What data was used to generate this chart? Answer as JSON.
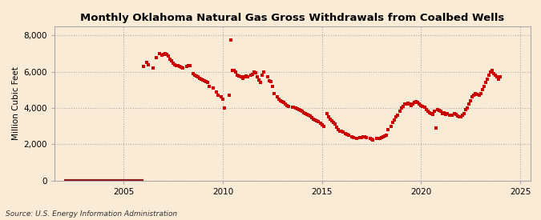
{
  "title": "Monthly Oklahoma Natural Gas Gross Withdrawals from Coalbed Wells",
  "ylabel": "Million Cubic Feet",
  "source": "Source: U.S. Energy Information Administration",
  "background_color": "#faebd7",
  "plot_bg_color": "#faebd7",
  "line_color": "#8b1a1a",
  "scatter_color": "#cc0000",
  "xlim_left": 2001.5,
  "xlim_right": 2025.5,
  "ylim_bottom": 0,
  "ylim_top": 8500,
  "yticks": [
    0,
    2000,
    4000,
    6000,
    8000
  ],
  "xticks": [
    2005,
    2010,
    2015,
    2020,
    2025
  ],
  "zero_line_start": 2002.0,
  "zero_line_end": 2006.0,
  "data": [
    [
      2006.0,
      6300
    ],
    [
      2006.17,
      6500
    ],
    [
      2006.25,
      6400
    ],
    [
      2006.5,
      6200
    ],
    [
      2006.67,
      6800
    ],
    [
      2006.83,
      7000
    ],
    [
      2006.92,
      6900
    ],
    [
      2007.0,
      6950
    ],
    [
      2007.08,
      7000
    ],
    [
      2007.17,
      6950
    ],
    [
      2007.25,
      6850
    ],
    [
      2007.33,
      6700
    ],
    [
      2007.42,
      6600
    ],
    [
      2007.5,
      6450
    ],
    [
      2007.58,
      6380
    ],
    [
      2007.67,
      6350
    ],
    [
      2007.75,
      6330
    ],
    [
      2007.83,
      6300
    ],
    [
      2007.92,
      6250
    ],
    [
      2008.0,
      6200
    ],
    [
      2008.17,
      6300
    ],
    [
      2008.25,
      6350
    ],
    [
      2008.33,
      6350
    ],
    [
      2008.5,
      5900
    ],
    [
      2008.58,
      5800
    ],
    [
      2008.67,
      5750
    ],
    [
      2008.75,
      5700
    ],
    [
      2008.83,
      5650
    ],
    [
      2008.92,
      5600
    ],
    [
      2009.0,
      5550
    ],
    [
      2009.08,
      5500
    ],
    [
      2009.17,
      5450
    ],
    [
      2009.25,
      5400
    ],
    [
      2009.33,
      5200
    ],
    [
      2009.5,
      5100
    ],
    [
      2009.67,
      4900
    ],
    [
      2009.75,
      4700
    ],
    [
      2009.92,
      4600
    ],
    [
      2010.0,
      4500
    ],
    [
      2010.08,
      4000
    ],
    [
      2010.33,
      4700
    ],
    [
      2010.42,
      7750
    ],
    [
      2010.5,
      6050
    ],
    [
      2010.58,
      6050
    ],
    [
      2010.67,
      6000
    ],
    [
      2010.75,
      5800
    ],
    [
      2010.83,
      5750
    ],
    [
      2010.92,
      5700
    ],
    [
      2011.0,
      5650
    ],
    [
      2011.08,
      5700
    ],
    [
      2011.17,
      5750
    ],
    [
      2011.25,
      5700
    ],
    [
      2011.42,
      5800
    ],
    [
      2011.5,
      5850
    ],
    [
      2011.58,
      6000
    ],
    [
      2011.67,
      5950
    ],
    [
      2011.75,
      5700
    ],
    [
      2011.83,
      5550
    ],
    [
      2011.92,
      5400
    ],
    [
      2012.0,
      5800
    ],
    [
      2012.08,
      6000
    ],
    [
      2012.25,
      5700
    ],
    [
      2012.33,
      5500
    ],
    [
      2012.42,
      5450
    ],
    [
      2012.5,
      5200
    ],
    [
      2012.58,
      4800
    ],
    [
      2012.75,
      4600
    ],
    [
      2012.83,
      4500
    ],
    [
      2012.92,
      4400
    ],
    [
      2013.0,
      4350
    ],
    [
      2013.08,
      4300
    ],
    [
      2013.17,
      4200
    ],
    [
      2013.25,
      4150
    ],
    [
      2013.33,
      4100
    ],
    [
      2013.5,
      4050
    ],
    [
      2013.58,
      4050
    ],
    [
      2013.67,
      4000
    ],
    [
      2013.75,
      3950
    ],
    [
      2013.83,
      3900
    ],
    [
      2013.92,
      3850
    ],
    [
      2014.0,
      3800
    ],
    [
      2014.08,
      3750
    ],
    [
      2014.17,
      3700
    ],
    [
      2014.25,
      3650
    ],
    [
      2014.33,
      3600
    ],
    [
      2014.42,
      3550
    ],
    [
      2014.5,
      3450
    ],
    [
      2014.58,
      3400
    ],
    [
      2014.67,
      3350
    ],
    [
      2014.75,
      3300
    ],
    [
      2014.83,
      3250
    ],
    [
      2014.92,
      3150
    ],
    [
      2015.0,
      3050
    ],
    [
      2015.08,
      3000
    ],
    [
      2015.25,
      3700
    ],
    [
      2015.33,
      3500
    ],
    [
      2015.42,
      3400
    ],
    [
      2015.5,
      3300
    ],
    [
      2015.58,
      3200
    ],
    [
      2015.67,
      3100
    ],
    [
      2015.75,
      2950
    ],
    [
      2015.83,
      2800
    ],
    [
      2015.92,
      2700
    ],
    [
      2016.0,
      2700
    ],
    [
      2016.08,
      2650
    ],
    [
      2016.17,
      2600
    ],
    [
      2016.25,
      2550
    ],
    [
      2016.33,
      2500
    ],
    [
      2016.5,
      2400
    ],
    [
      2016.58,
      2350
    ],
    [
      2016.75,
      2300
    ],
    [
      2016.92,
      2350
    ],
    [
      2017.0,
      2350
    ],
    [
      2017.08,
      2400
    ],
    [
      2017.17,
      2400
    ],
    [
      2017.25,
      2350
    ],
    [
      2017.42,
      2300
    ],
    [
      2017.5,
      2280
    ],
    [
      2017.58,
      2250
    ],
    [
      2017.75,
      2300
    ],
    [
      2017.92,
      2320
    ],
    [
      2018.0,
      2350
    ],
    [
      2018.08,
      2400
    ],
    [
      2018.17,
      2450
    ],
    [
      2018.25,
      2500
    ],
    [
      2018.33,
      2800
    ],
    [
      2018.5,
      3000
    ],
    [
      2018.58,
      3200
    ],
    [
      2018.67,
      3350
    ],
    [
      2018.75,
      3500
    ],
    [
      2018.83,
      3600
    ],
    [
      2018.92,
      3800
    ],
    [
      2019.0,
      4000
    ],
    [
      2019.08,
      4100
    ],
    [
      2019.17,
      4200
    ],
    [
      2019.25,
      4200
    ],
    [
      2019.33,
      4250
    ],
    [
      2019.42,
      4200
    ],
    [
      2019.5,
      4150
    ],
    [
      2019.58,
      4200
    ],
    [
      2019.67,
      4300
    ],
    [
      2019.75,
      4350
    ],
    [
      2019.83,
      4300
    ],
    [
      2019.92,
      4200
    ],
    [
      2020.0,
      4150
    ],
    [
      2020.08,
      4100
    ],
    [
      2020.17,
      4050
    ],
    [
      2020.25,
      3900
    ],
    [
      2020.33,
      3800
    ],
    [
      2020.42,
      3750
    ],
    [
      2020.5,
      3700
    ],
    [
      2020.58,
      3650
    ],
    [
      2020.67,
      3800
    ],
    [
      2020.75,
      2900
    ],
    [
      2020.83,
      3900
    ],
    [
      2020.92,
      3850
    ],
    [
      2021.0,
      3800
    ],
    [
      2021.08,
      3700
    ],
    [
      2021.17,
      3750
    ],
    [
      2021.25,
      3650
    ],
    [
      2021.33,
      3700
    ],
    [
      2021.42,
      3600
    ],
    [
      2021.5,
      3600
    ],
    [
      2021.58,
      3600
    ],
    [
      2021.67,
      3700
    ],
    [
      2021.75,
      3650
    ],
    [
      2021.83,
      3550
    ],
    [
      2021.92,
      3500
    ],
    [
      2022.0,
      3500
    ],
    [
      2022.08,
      3600
    ],
    [
      2022.17,
      3700
    ],
    [
      2022.25,
      3900
    ],
    [
      2022.33,
      4000
    ],
    [
      2022.42,
      4200
    ],
    [
      2022.5,
      4400
    ],
    [
      2022.58,
      4600
    ],
    [
      2022.67,
      4700
    ],
    [
      2022.75,
      4800
    ],
    [
      2022.83,
      4750
    ],
    [
      2022.92,
      4700
    ],
    [
      2023.0,
      4800
    ],
    [
      2023.08,
      5000
    ],
    [
      2023.17,
      5200
    ],
    [
      2023.25,
      5400
    ],
    [
      2023.33,
      5600
    ],
    [
      2023.42,
      5800
    ],
    [
      2023.5,
      6000
    ],
    [
      2023.58,
      6050
    ],
    [
      2023.67,
      5900
    ],
    [
      2023.75,
      5800
    ],
    [
      2023.83,
      5700
    ],
    [
      2023.92,
      5600
    ],
    [
      2024.0,
      5700
    ]
  ]
}
